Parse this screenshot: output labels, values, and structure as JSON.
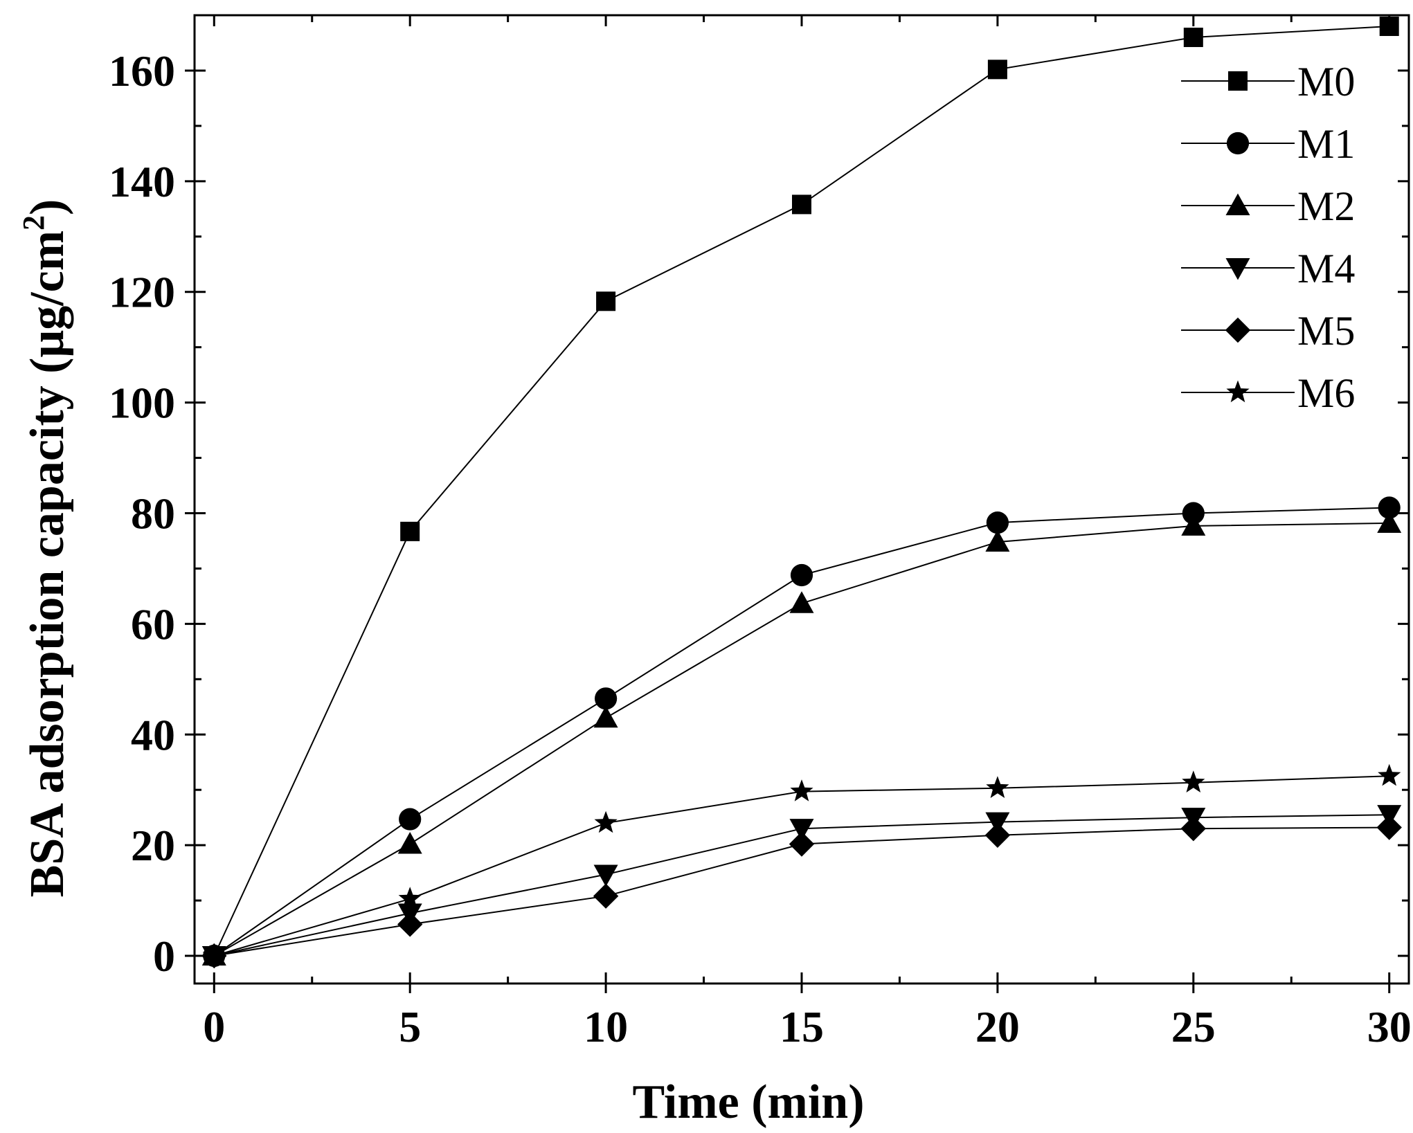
{
  "chart_data": {
    "type": "line",
    "title": "",
    "xlabel": "Time (min)",
    "ylabel": {
      "text": "BSA adsorption capacity (μg/cm",
      "superscript": "2",
      "suffix": ")"
    },
    "xlim": [
      -0.5,
      30.5
    ],
    "ylim": [
      -5,
      170
    ],
    "x_ticks": [
      0,
      5,
      10,
      15,
      20,
      25,
      30
    ],
    "y_ticks": [
      0,
      20,
      40,
      60,
      80,
      100,
      120,
      140,
      160
    ],
    "legend_position": "top-right",
    "series": [
      {
        "name": "M0",
        "marker": "square",
        "x": [
          0,
          5,
          10,
          15,
          20,
          25,
          30
        ],
        "values": [
          0,
          76.7,
          118.3,
          135.8,
          160.2,
          166.0,
          168.0
        ]
      },
      {
        "name": "M1",
        "marker": "circle",
        "x": [
          0,
          5,
          10,
          15,
          20,
          25,
          30
        ],
        "values": [
          0,
          24.7,
          46.5,
          68.8,
          78.3,
          80.0,
          81.0
        ]
      },
      {
        "name": "M2",
        "marker": "triangle-up",
        "x": [
          0,
          5,
          10,
          15,
          20,
          25,
          30
        ],
        "values": [
          0,
          20.2,
          43.0,
          63.7,
          74.8,
          77.7,
          78.2
        ]
      },
      {
        "name": "M4",
        "marker": "triangle-down",
        "x": [
          0,
          5,
          10,
          15,
          20,
          25,
          30
        ],
        "values": [
          0,
          7.7,
          14.7,
          23.0,
          24.2,
          25.0,
          25.5
        ]
      },
      {
        "name": "M5",
        "marker": "diamond",
        "x": [
          0,
          5,
          10,
          15,
          20,
          25,
          30
        ],
        "values": [
          0,
          5.7,
          10.8,
          20.2,
          21.8,
          23.0,
          23.2
        ]
      },
      {
        "name": "M6",
        "marker": "star",
        "x": [
          0,
          5,
          10,
          15,
          20,
          25,
          30
        ],
        "values": [
          0,
          10.3,
          24.0,
          29.7,
          30.3,
          31.3,
          32.5
        ]
      }
    ]
  }
}
